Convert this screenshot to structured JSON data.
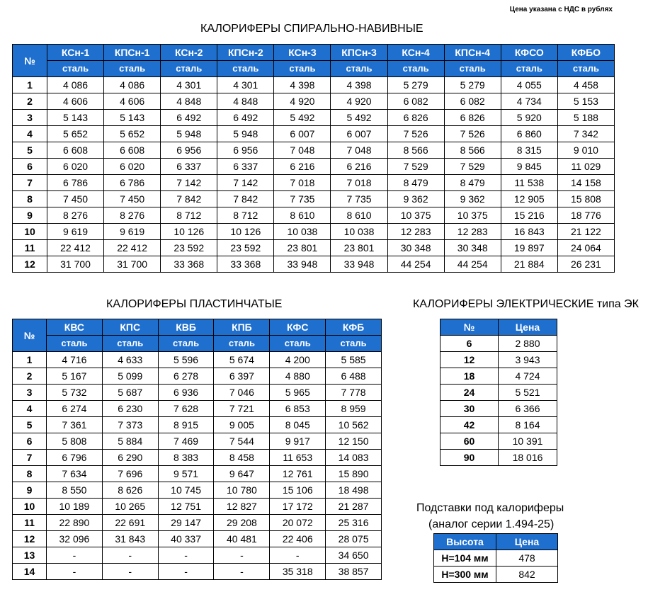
{
  "note": "Цена указана с НДС в рублях",
  "spiral": {
    "title": "КАЛОРИФЕРЫ СПИРАЛЬНО-НАВИВНЫЕ",
    "num_header": "№",
    "models": [
      "КСн-1",
      "КПСн-1",
      "КСн-2",
      "КПСн-2",
      "КСн-3",
      "КПСн-3",
      "КСн-4",
      "КПСн-4",
      "КФСО",
      "КФБО"
    ],
    "material": "сталь",
    "rows": [
      [
        "1",
        "4 086",
        "4 086",
        "4 301",
        "4 301",
        "4 398",
        "4 398",
        "5 279",
        "5 279",
        "4 055",
        "4 458"
      ],
      [
        "2",
        "4 606",
        "4 606",
        "4 848",
        "4 848",
        "4 920",
        "4 920",
        "6 082",
        "6 082",
        "4 734",
        "5 153"
      ],
      [
        "3",
        "5 143",
        "5 143",
        "6 492",
        "6 492",
        "5 492",
        "5 492",
        "6 826",
        "6 826",
        "5 920",
        "5 188"
      ],
      [
        "4",
        "5 652",
        "5 652",
        "5 948",
        "5 948",
        "6 007",
        "6 007",
        "7 526",
        "7 526",
        "6 860",
        "7 342"
      ],
      [
        "5",
        "6 608",
        "6 608",
        "6 956",
        "6 956",
        "7 048",
        "7 048",
        "8 566",
        "8 566",
        "8 315",
        "9 010"
      ],
      [
        "6",
        "6 020",
        "6 020",
        "6 337",
        "6 337",
        "6 216",
        "6 216",
        "7 529",
        "7 529",
        "9 845",
        "11 029"
      ],
      [
        "7",
        "6 786",
        "6 786",
        "7 142",
        "7 142",
        "7 018",
        "7 018",
        "8 479",
        "8 479",
        "11 538",
        "14 158"
      ],
      [
        "8",
        "7 450",
        "7 450",
        "7 842",
        "7 842",
        "7 735",
        "7 735",
        "9 362",
        "9 362",
        "12 905",
        "15 808"
      ],
      [
        "9",
        "8 276",
        "8 276",
        "8 712",
        "8 712",
        "8 610",
        "8 610",
        "10 375",
        "10 375",
        "15 216",
        "18 776"
      ],
      [
        "10",
        "9 619",
        "9 619",
        "10 126",
        "10 126",
        "10 038",
        "10 038",
        "12 283",
        "12 283",
        "16 843",
        "21 122"
      ],
      [
        "11",
        "22 412",
        "22 412",
        "23 592",
        "23 592",
        "23 801",
        "23 801",
        "30 348",
        "30 348",
        "19 897",
        "24 064"
      ],
      [
        "12",
        "31 700",
        "31 700",
        "33 368",
        "33 368",
        "33 948",
        "33 948",
        "44 254",
        "44 254",
        "21 884",
        "26 231"
      ]
    ]
  },
  "plate": {
    "title": "КАЛОРИФЕРЫ ПЛАСТИНЧАТЫЕ",
    "num_header": "№",
    "models": [
      "КВС",
      "КПС",
      "КВБ",
      "КПБ",
      "КФС",
      "КФБ"
    ],
    "material": "сталь",
    "rows": [
      [
        "1",
        "4 716",
        "4 633",
        "5 596",
        "5 674",
        "4 200",
        "5 585"
      ],
      [
        "2",
        "5 167",
        "5 099",
        "6 278",
        "6 397",
        "4 880",
        "6 488"
      ],
      [
        "3",
        "5 732",
        "5 687",
        "6 936",
        "7 046",
        "5 965",
        "7 778"
      ],
      [
        "4",
        "6 274",
        "6 230",
        "7 628",
        "7 721",
        "6 853",
        "8 959"
      ],
      [
        "5",
        "7 361",
        "7 373",
        "8 915",
        "9 005",
        "8 045",
        "10 562"
      ],
      [
        "6",
        "5 808",
        "5 884",
        "7 469",
        "7 544",
        "9 917",
        "12 150"
      ],
      [
        "7",
        "6 796",
        "6 290",
        "8 383",
        "8 458",
        "11 653",
        "14 083"
      ],
      [
        "8",
        "7 634",
        "7 696",
        "9 571",
        "9 647",
        "12 761",
        "15 890"
      ],
      [
        "9",
        "8 550",
        "8 626",
        "10 745",
        "10 780",
        "15 106",
        "18 498"
      ],
      [
        "10",
        "10 189",
        "10 265",
        "12 751",
        "12 827",
        "17 172",
        "21 287"
      ],
      [
        "11",
        "22 890",
        "22 691",
        "29 147",
        "29 208",
        "20 072",
        "25 316"
      ],
      [
        "12",
        "32 096",
        "31 843",
        "40 337",
        "40 481",
        "22 406",
        "28 075"
      ],
      [
        "13",
        "-",
        "-",
        "-",
        "-",
        "-",
        "34 650"
      ],
      [
        "14",
        "-",
        "-",
        "-",
        "-",
        "35 318",
        "38 857"
      ]
    ]
  },
  "electric": {
    "title": "КАЛОРИФЕРЫ ЭЛЕКТРИЧЕСКИЕ типа ЭК",
    "headers": [
      "№",
      "Цена"
    ],
    "rows": [
      [
        "6",
        "2 880"
      ],
      [
        "12",
        "3 943"
      ],
      [
        "18",
        "4 724"
      ],
      [
        "24",
        "5 521"
      ],
      [
        "30",
        "6 366"
      ],
      [
        "42",
        "8 164"
      ],
      [
        "60",
        "10 391"
      ],
      [
        "90",
        "18 016"
      ]
    ]
  },
  "stands": {
    "title_line1": "Подставки под калориферы",
    "title_line2": "(аналог серии 1.494-25)",
    "headers": [
      "Высота",
      "Цена"
    ],
    "rows": [
      [
        "H=104 мм",
        "478"
      ],
      [
        "H=300 мм",
        "842"
      ]
    ]
  }
}
